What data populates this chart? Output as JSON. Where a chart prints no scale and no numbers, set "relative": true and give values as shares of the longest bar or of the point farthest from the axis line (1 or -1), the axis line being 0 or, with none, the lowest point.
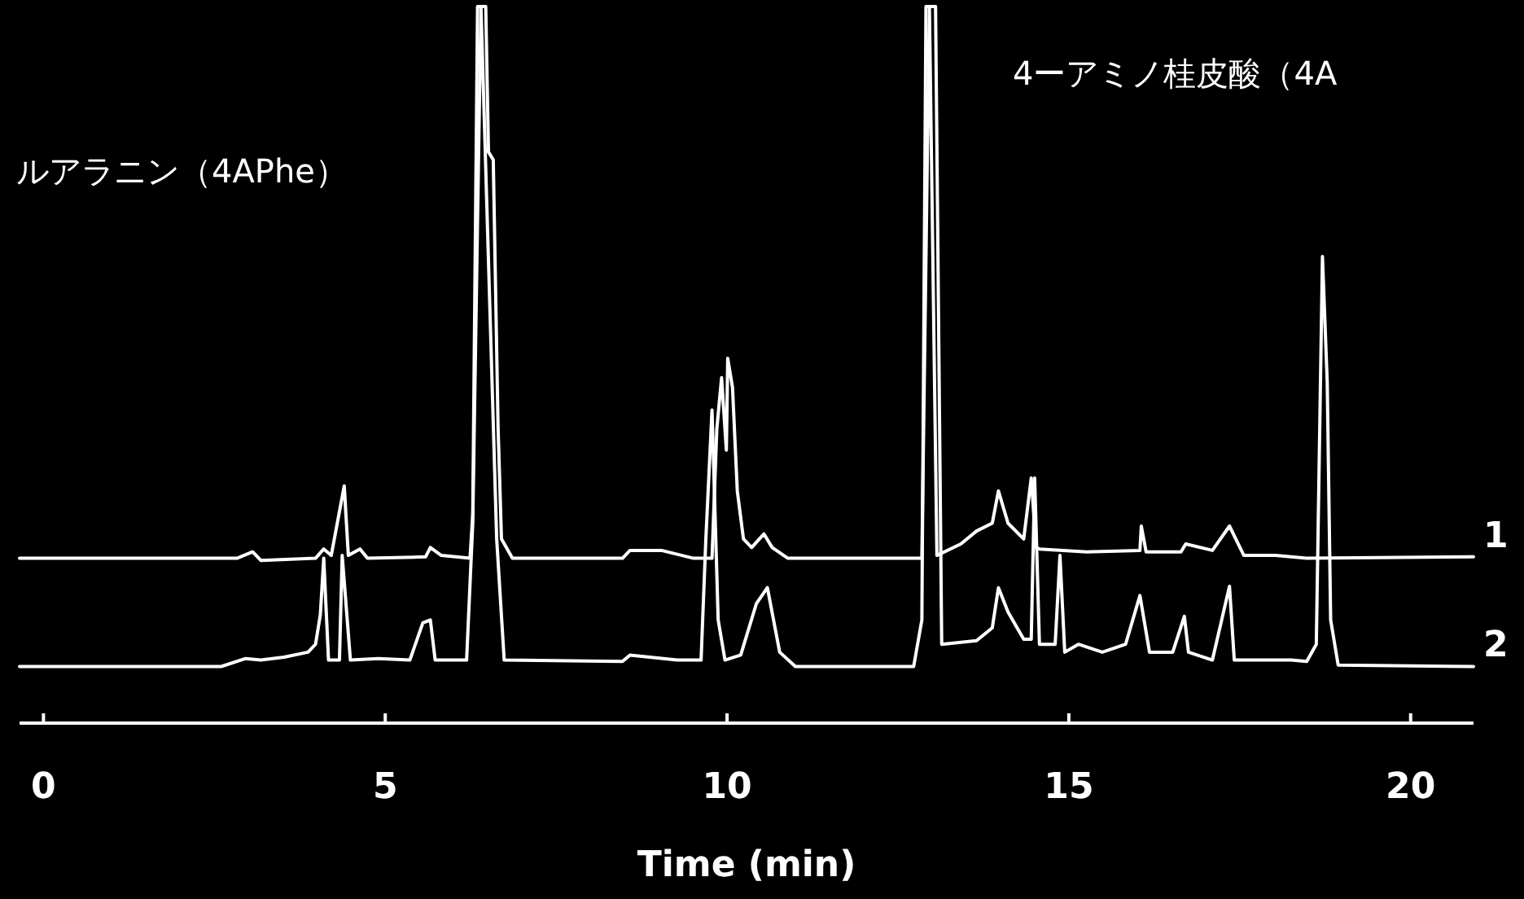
{
  "chart_data": {
    "type": "line",
    "relative": true,
    "xlabel": "Time (min)",
    "xlim": [
      -0.35,
      20.92
    ],
    "xticks": [
      0,
      5,
      10,
      15,
      20
    ],
    "legend": false,
    "grid": false,
    "annotations": [
      "ルアラニン（4APhe）",
      "4ーアミノ桂皮酸（4A"
    ],
    "series": [
      {
        "name": "1",
        "color": "#ffffff",
        "x": [
          -0.35,
          2.83,
          3.06,
          3.18,
          3.98,
          4.1,
          4.21,
          4.4,
          4.46,
          4.63,
          4.74,
          5.59,
          5.66,
          5.82,
          6.24,
          6.28,
          6.35,
          6.47,
          6.51,
          6.58,
          6.65,
          6.7,
          6.86,
          8.47,
          8.58,
          9.04,
          9.51,
          9.78,
          9.85,
          9.92,
          9.99,
          10.01,
          10.08,
          10.15,
          10.24,
          10.36,
          10.54,
          10.66,
          10.89,
          12.85,
          12.96,
          13.07,
          13.42,
          13.65,
          13.88,
          13.97,
          14.11,
          14.34,
          14.45,
          14.52,
          14.57,
          15.26,
          16.04,
          16.06,
          16.13,
          16.64,
          16.71,
          17.1,
          17.35,
          17.56,
          18.02,
          18.48,
          20.92
        ],
        "values": [
          0.23,
          0.23,
          0.239,
          0.227,
          0.23,
          0.243,
          0.234,
          0.331,
          0.234,
          0.243,
          0.23,
          0.232,
          0.245,
          0.234,
          0.23,
          0.291,
          1,
          1,
          0.797,
          0.786,
          0.414,
          0.257,
          0.23,
          0.23,
          0.241,
          0.241,
          0.23,
          0.23,
          0.41,
          0.482,
          0.381,
          0.509,
          0.468,
          0.324,
          0.257,
          0.245,
          0.264,
          0.245,
          0.23,
          0.23,
          1,
          0.234,
          0.25,
          0.268,
          0.279,
          0.324,
          0.279,
          0.257,
          0.342,
          0.245,
          0.243,
          0.239,
          0.241,
          0.275,
          0.239,
          0.239,
          0.25,
          0.241,
          0.275,
          0.234,
          0.234,
          0.23,
          0.232
        ]
      },
      {
        "name": "2",
        "color": "#ffffff",
        "x": [
          -0.35,
          2.6,
          2.95,
          3.18,
          3.52,
          3.87,
          3.98,
          4.05,
          4.1,
          4.17,
          4.33,
          4.37,
          4.49,
          4.9,
          5.36,
          5.55,
          5.66,
          5.73,
          6.19,
          6.28,
          6.4,
          6.63,
          6.74,
          8.47,
          8.58,
          9.27,
          9.62,
          9.69,
          9.78,
          9.87,
          9.97,
          10.2,
          10.43,
          10.59,
          10.77,
          11.0,
          12.73,
          12.85,
          12.91,
          13.05,
          13.14,
          13.65,
          13.88,
          13.97,
          14.11,
          14.34,
          14.45,
          14.5,
          14.57,
          14.8,
          14.87,
          14.94,
          15.14,
          15.49,
          15.83,
          16.04,
          16.18,
          16.52,
          16.69,
          16.75,
          17.1,
          17.35,
          17.42,
          18.25,
          18.48,
          18.62,
          18.71,
          18.78,
          18.83,
          18.94,
          20.92
        ],
        "values": [
          0.079,
          0.079,
          0.09,
          0.088,
          0.092,
          0.099,
          0.11,
          0.151,
          0.23,
          0.088,
          0.088,
          0.234,
          0.088,
          0.09,
          0.088,
          0.14,
          0.144,
          0.088,
          0.088,
          0.279,
          1,
          0.257,
          0.088,
          0.086,
          0.095,
          0.088,
          0.088,
          0.257,
          0.437,
          0.144,
          0.088,
          0.095,
          0.167,
          0.189,
          0.099,
          0.079,
          0.079,
          0.144,
          1,
          1,
          0.11,
          0.115,
          0.133,
          0.189,
          0.155,
          0.117,
          0.117,
          0.342,
          0.11,
          0.11,
          0.234,
          0.099,
          0.11,
          0.099,
          0.11,
          0.178,
          0.099,
          0.099,
          0.149,
          0.099,
          0.088,
          0.191,
          0.088,
          0.088,
          0.086,
          0.11,
          0.651,
          0.475,
          0.144,
          0.081,
          0.079
        ]
      }
    ]
  }
}
